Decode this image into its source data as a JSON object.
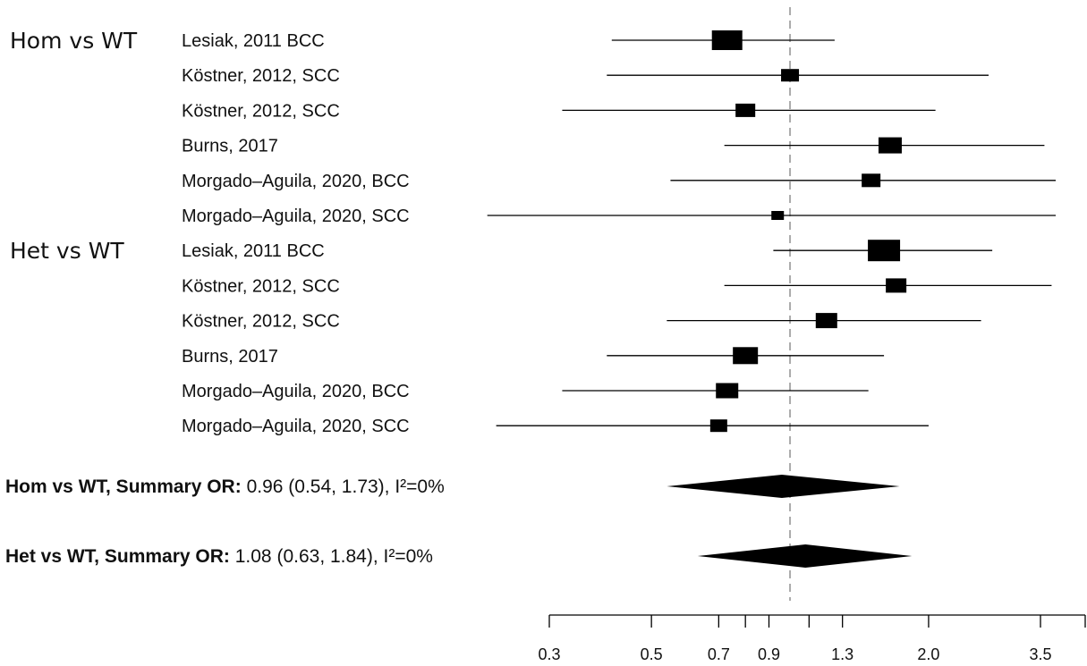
{
  "chart_data": {
    "type": "forest",
    "x_scale": "log",
    "x_ticks": [
      0.3,
      0.5,
      0.7,
      0.9,
      1.3,
      2.0,
      3.5
    ],
    "x_tick_labels": [
      "0.3",
      "0.5",
      "0.7",
      "0.9",
      "1.3",
      "2.0",
      "3.5"
    ],
    "minor_ticks": [
      0.8,
      1.1
    ],
    "reference_line": 1.0,
    "groups": [
      {
        "label": "Hom vs WT",
        "studies": [
          {
            "label": "Lesiak, 2011 BCC",
            "or": 0.73,
            "lo": 0.41,
            "hi": 1.25
          },
          {
            "label": "Köstner, 2012, SCC",
            "or": 1.0,
            "lo": 0.4,
            "hi": 2.7
          },
          {
            "label": "Köstner, 2012, SCC",
            "or": 0.8,
            "lo": 0.32,
            "hi": 2.07
          },
          {
            "label": "Burns, 2017",
            "or": 1.65,
            "lo": 0.72,
            "hi": 3.57
          },
          {
            "label": "Morgado–Aguila, 2020, BCC",
            "or": 1.5,
            "lo": 0.55,
            "hi": 3.8
          },
          {
            "label": "Morgado–Aguila, 2020, SCC",
            "or": 0.94,
            "lo": 0.22,
            "hi": 3.8
          }
        ]
      },
      {
        "label": "Het vs WT",
        "studies": [
          {
            "label": "Lesiak, 2011 BCC",
            "or": 1.6,
            "lo": 0.92,
            "hi": 2.75
          },
          {
            "label": "Köstner, 2012, SCC",
            "or": 1.7,
            "lo": 0.72,
            "hi": 3.7
          },
          {
            "label": "Köstner, 2012, SCC",
            "or": 1.2,
            "lo": 0.54,
            "hi": 2.6
          },
          {
            "label": "Burns, 2017",
            "or": 0.8,
            "lo": 0.4,
            "hi": 1.6
          },
          {
            "label": "Morgado–Aguila, 2020, BCC",
            "or": 0.73,
            "lo": 0.32,
            "hi": 1.48
          },
          {
            "label": "Morgado–Aguila, 2020, SCC",
            "or": 0.7,
            "lo": 0.23,
            "hi": 2.0
          }
        ]
      }
    ],
    "summaries": [
      {
        "label_bold": "Hom vs WT, Summary OR:",
        "label_rest": " 0.96 (0.54, 1.73), I²=0%",
        "or": 0.96,
        "lo": 0.54,
        "hi": 1.73
      },
      {
        "label_bold": "Het vs WT, Summary OR:",
        "label_rest": " 1.08 (0.63, 1.84), I²=0%",
        "or": 1.08,
        "lo": 0.63,
        "hi": 1.84
      }
    ],
    "colors": {
      "marks": "#000000",
      "reference_line": "#aaaaaa"
    }
  }
}
